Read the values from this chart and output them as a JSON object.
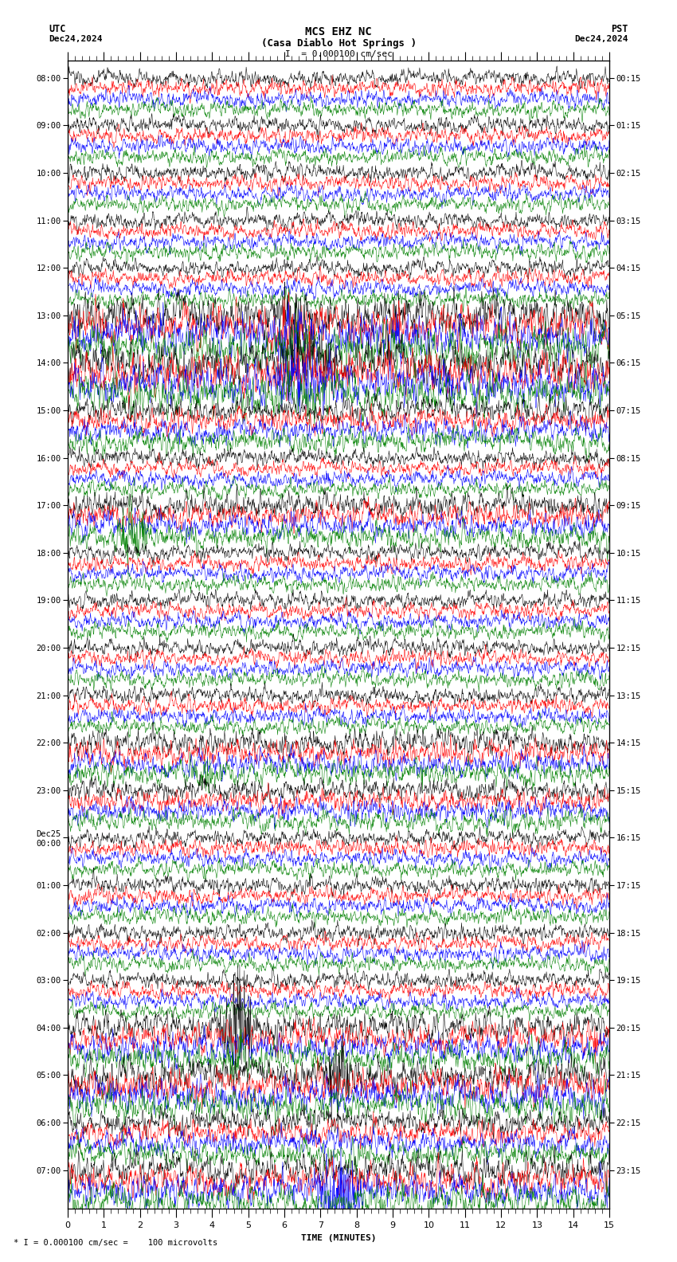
{
  "title_line1": "MCS EHZ NC",
  "title_line2": "(Casa Diablo Hot Springs )",
  "title_scale": "I  = 0.000100 cm/sec",
  "utc_label": "UTC",
  "utc_date": "Dec24,2024",
  "pst_label": "PST",
  "pst_date": "Dec24,2024",
  "xlabel": "TIME (MINUTES)",
  "bottom_note": "* I = 0.000100 cm/sec =    100 microvolts",
  "left_times_utc": [
    "08:00",
    "09:00",
    "10:00",
    "11:00",
    "12:00",
    "13:00",
    "14:00",
    "15:00",
    "16:00",
    "17:00",
    "18:00",
    "19:00",
    "20:00",
    "21:00",
    "22:00",
    "23:00",
    "Dec25\n00:00",
    "01:00",
    "02:00",
    "03:00",
    "04:00",
    "05:00",
    "06:00",
    "07:00"
  ],
  "right_times_pst": [
    "00:15",
    "01:15",
    "02:15",
    "03:15",
    "04:15",
    "05:15",
    "06:15",
    "07:15",
    "08:15",
    "09:15",
    "10:15",
    "11:15",
    "12:15",
    "13:15",
    "14:15",
    "15:15",
    "16:15",
    "17:15",
    "18:15",
    "19:15",
    "20:15",
    "21:15",
    "22:15",
    "23:15"
  ],
  "num_rows": 24,
  "traces_per_row": 4,
  "colors": [
    "black",
    "red",
    "blue",
    "green"
  ],
  "bg_color": "white",
  "line_width": 0.4,
  "x_min": 0,
  "x_max": 15,
  "x_ticks_major": [
    0,
    1,
    2,
    3,
    4,
    5,
    6,
    7,
    8,
    9,
    10,
    11,
    12,
    13,
    14,
    15
  ],
  "noise_seed": 42
}
